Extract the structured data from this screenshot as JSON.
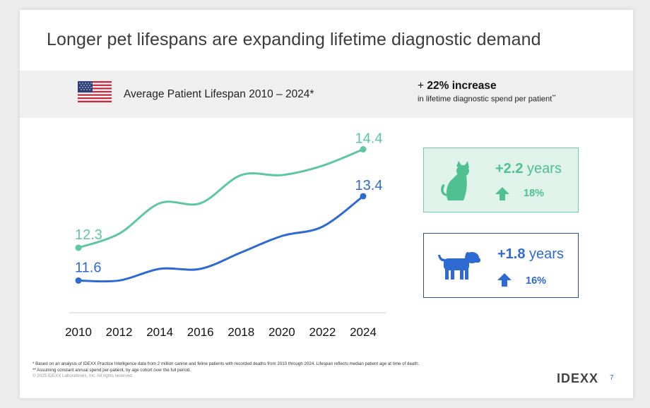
{
  "title": "Longer pet lifespans are expanding lifetime diagnostic demand",
  "band": {
    "flag_icon": "us-flag-icon",
    "label": "Average Patient Lifespan 2010 – 2024*"
  },
  "increase": {
    "prefix": "+ ",
    "headline": "22% increase",
    "subtext": "in lifetime diagnostic spend per patient",
    "subtext_mark": "**"
  },
  "chart_data": {
    "type": "line",
    "title": "Average Patient Lifespan 2010 – 2024*",
    "xlabel": "",
    "ylabel": "",
    "categories": [
      "2010",
      "2012",
      "2014",
      "2016",
      "2018",
      "2020",
      "2022",
      "2024"
    ],
    "series": [
      {
        "name": "Cat",
        "color": "#5ec7a0",
        "values": [
          12.3,
          12.6,
          13.25,
          13.25,
          13.85,
          13.85,
          14.05,
          14.4
        ],
        "start_label": "12.3",
        "end_label": "14.4"
      },
      {
        "name": "Dog",
        "color": "#2f6ad2",
        "values": [
          11.6,
          11.6,
          11.85,
          11.85,
          12.2,
          12.55,
          12.75,
          13.4
        ],
        "start_label": "11.6",
        "end_label": "13.4"
      }
    ],
    "ylim": [
      11.2,
      14.8
    ],
    "grid": false,
    "legend": "none"
  },
  "cards": {
    "cat": {
      "icon": "cat-icon",
      "value": "+2.2",
      "unit": "years",
      "arrow_icon": "up-arrow-icon",
      "pct": "18%",
      "color": "#4fc091"
    },
    "dog": {
      "icon": "dog-icon",
      "value": "+1.8",
      "unit": "years",
      "arrow_icon": "up-arrow-icon",
      "pct": "16%",
      "color": "#2f6ad2"
    }
  },
  "footnotes": {
    "note1": "* Based on an analysis of IDEXX Practice Intelligence data from 2 million canine and feline patients with recorded deaths from 2010 through 2024. Lifespan reflects median patient age at time of death.",
    "note2": "** Assuming constant annual spend per-patient, by age cohort over the full period.",
    "copyright": "© 2025 IDEXX Laboratories, Inc. All rights reserved."
  },
  "logo": "IDEXX",
  "page_number": "7"
}
